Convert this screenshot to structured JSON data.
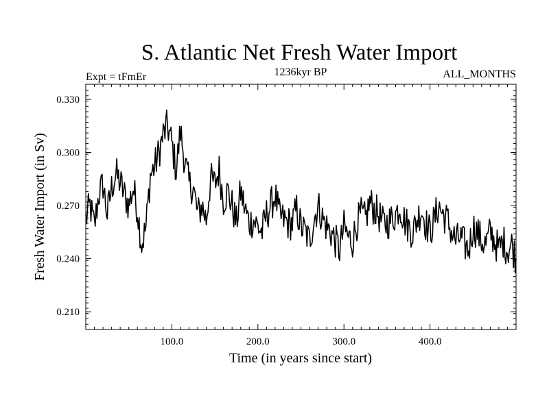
{
  "chart_data": {
    "type": "line",
    "title": "S. Atlantic Net Fresh Water Import",
    "subtitle_left": "Expt = tFmEr",
    "subtitle_center": "1236kyr BP",
    "subtitle_right": "ALL_MONTHS",
    "xlabel": "Time (in years since start)",
    "ylabel": "Fresh Water Import (in Sv)",
    "xlim": [
      0,
      500
    ],
    "ylim": [
      0.2,
      0.3385
    ],
    "x_ticks": [
      100,
      200,
      300,
      400
    ],
    "x_tick_labels": [
      "100.0",
      "200.0",
      "300.0",
      "400.0"
    ],
    "y_ticks": [
      0.21,
      0.24,
      0.27,
      0.3,
      0.33
    ],
    "y_tick_labels": [
      "0.210",
      "0.240",
      "0.270",
      "0.300",
      "0.330"
    ],
    "grid": false,
    "series": [
      {
        "name": "Fresh Water Import",
        "color": "#000000",
        "x_start": 0,
        "x_step": 5,
        "values": [
          0.262,
          0.27,
          0.258,
          0.276,
          0.282,
          0.265,
          0.28,
          0.288,
          0.283,
          0.276,
          0.27,
          0.28,
          0.268,
          0.248,
          0.258,
          0.287,
          0.292,
          0.3,
          0.31,
          0.315,
          0.305,
          0.29,
          0.312,
          0.295,
          0.282,
          0.28,
          0.265,
          0.27,
          0.262,
          0.285,
          0.282,
          0.29,
          0.273,
          0.278,
          0.27,
          0.26,
          0.278,
          0.268,
          0.26,
          0.262,
          0.258,
          0.255,
          0.265,
          0.27,
          0.276,
          0.264,
          0.262,
          0.26,
          0.26,
          0.268,
          0.258,
          0.255,
          0.25,
          0.262,
          0.27,
          0.263,
          0.258,
          0.255,
          0.25,
          0.245,
          0.258,
          0.252,
          0.25,
          0.26,
          0.265,
          0.262,
          0.272,
          0.268,
          0.265,
          0.26,
          0.26,
          0.262,
          0.265,
          0.27,
          0.262,
          0.258,
          0.255,
          0.262,
          0.268,
          0.26,
          0.255,
          0.262,
          0.27,
          0.265,
          0.262,
          0.255,
          0.25,
          0.252,
          0.248,
          0.245,
          0.258,
          0.255,
          0.25,
          0.248,
          0.255,
          0.25,
          0.245,
          0.25,
          0.245,
          0.248,
          0.24
        ]
      }
    ]
  }
}
